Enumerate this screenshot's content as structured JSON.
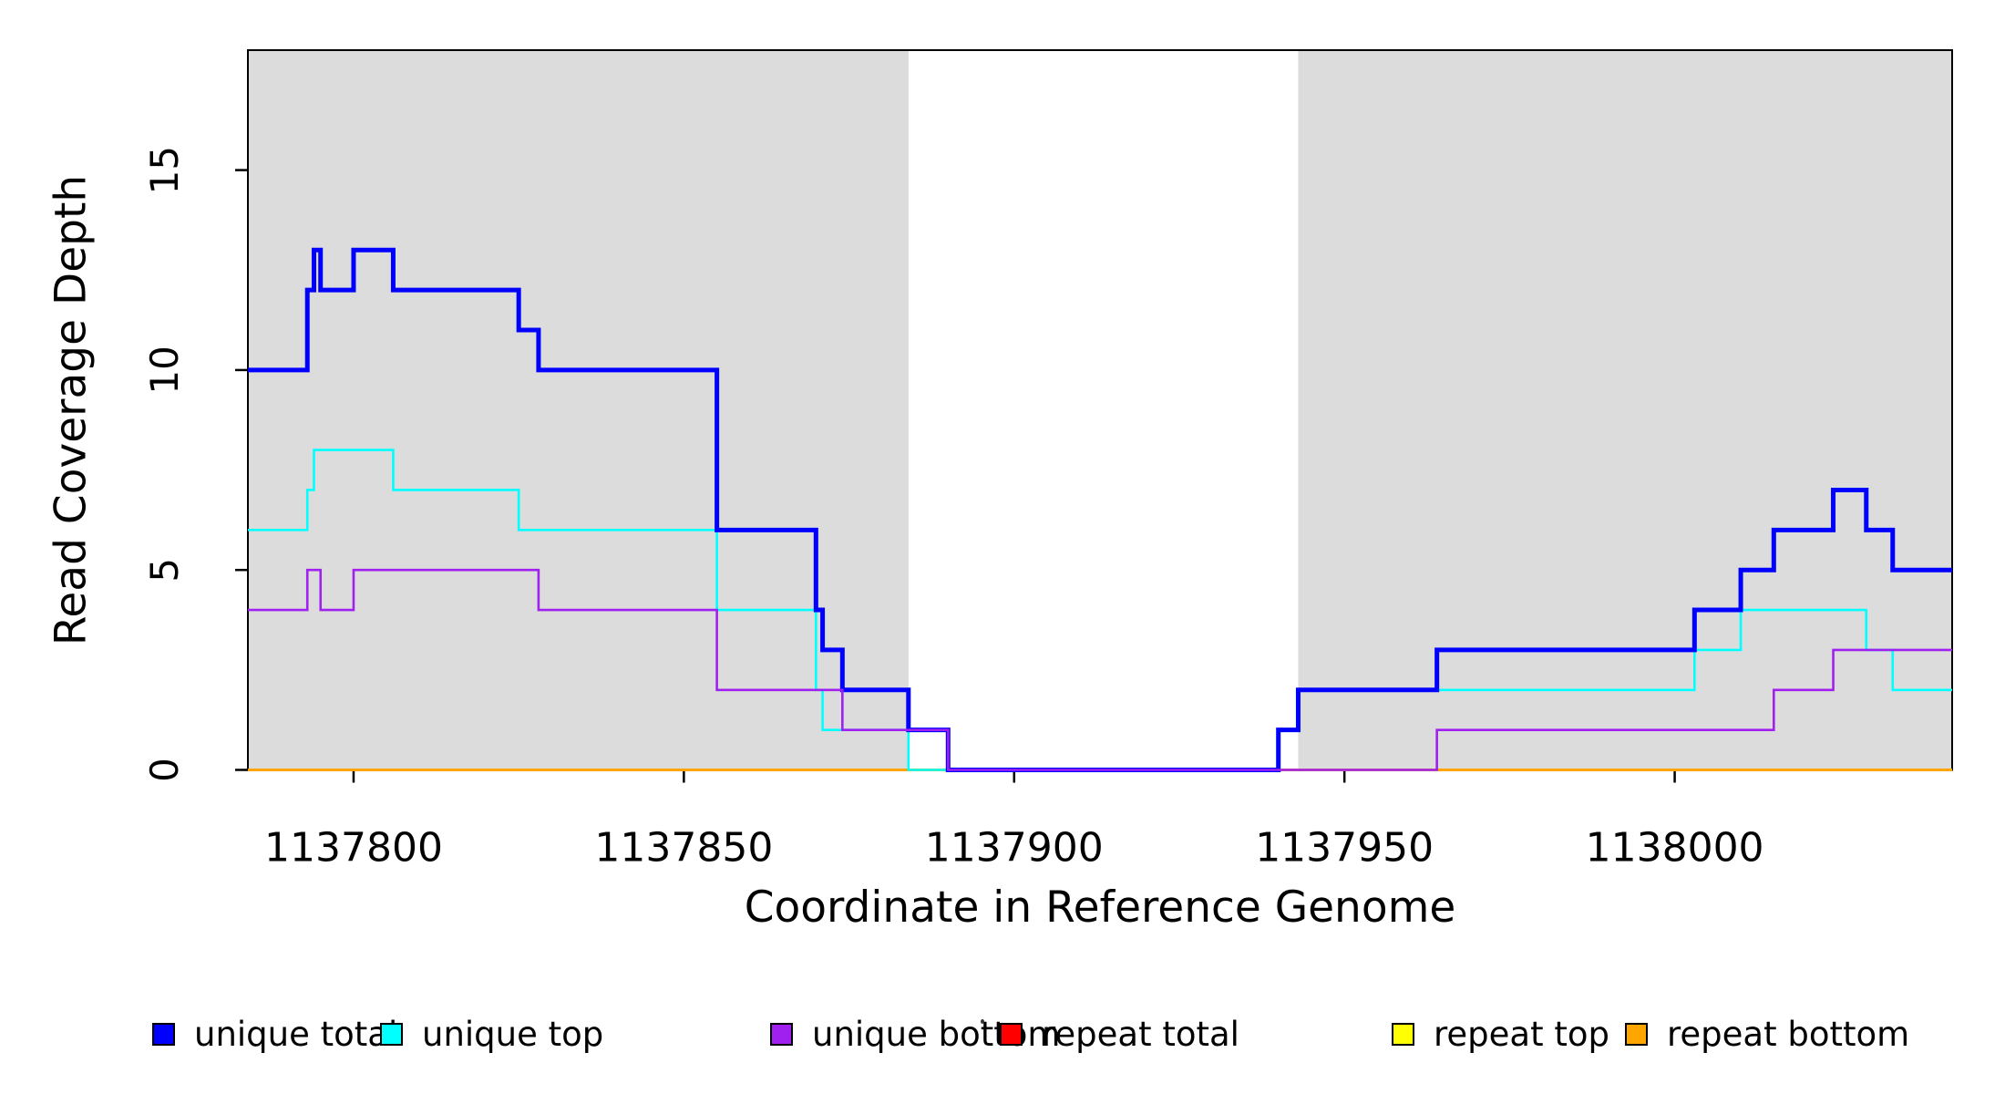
{
  "figure": {
    "x_axis_title": "Coordinate in Reference Genome",
    "y_axis_title": "Read Coverage Depth"
  },
  "chart_data": {
    "type": "line",
    "subtype": "step",
    "title": "",
    "xlabel": "Coordinate in Reference Genome",
    "ylabel": "Read Coverage Depth",
    "xlim": [
      1137784,
      1138042
    ],
    "ylim": [
      0,
      18
    ],
    "x_ticks": [
      1137800,
      1137850,
      1137900,
      1137950,
      1138000
    ],
    "y_ticks": [
      0,
      5,
      10,
      15
    ],
    "grid": false,
    "legend_position": "bottom",
    "background_shading": {
      "color": "#DCDCDC",
      "regions": [
        {
          "x_start": 1137784,
          "x_end": 1137884
        },
        {
          "x_start": 1137943,
          "x_end": 1138042
        }
      ]
    },
    "series": [
      {
        "name": "unique total",
        "color": "#0000FF",
        "line_width": 5,
        "draw_order": 5,
        "steps": [
          [
            1137784,
            10
          ],
          [
            1137793,
            12
          ],
          [
            1137794,
            13
          ],
          [
            1137795,
            12
          ],
          [
            1137800,
            13
          ],
          [
            1137806,
            12
          ],
          [
            1137825,
            11
          ],
          [
            1137828,
            10
          ],
          [
            1137855,
            6
          ],
          [
            1137870,
            4
          ],
          [
            1137871,
            3
          ],
          [
            1137874,
            2
          ],
          [
            1137884,
            1
          ],
          [
            1137890,
            0
          ],
          [
            1137940,
            1
          ],
          [
            1137943,
            2
          ],
          [
            1137964,
            3
          ],
          [
            1138003,
            4
          ],
          [
            1138010,
            5
          ],
          [
            1138015,
            6
          ],
          [
            1138024,
            7
          ],
          [
            1138029,
            6
          ],
          [
            1138033,
            5
          ]
        ]
      },
      {
        "name": "unique top",
        "color": "#00FFFF",
        "line_width": 2.6,
        "draw_order": 4,
        "steps": [
          [
            1137784,
            6
          ],
          [
            1137793,
            7
          ],
          [
            1137794,
            8
          ],
          [
            1137806,
            7
          ],
          [
            1137825,
            6
          ],
          [
            1137855,
            4
          ],
          [
            1137870,
            2
          ],
          [
            1137871,
            1
          ],
          [
            1137884,
            0
          ],
          [
            1137940,
            1
          ],
          [
            1137943,
            2
          ],
          [
            1138003,
            3
          ],
          [
            1138010,
            4
          ],
          [
            1138029,
            3
          ],
          [
            1138033,
            2
          ]
        ]
      },
      {
        "name": "unique bottom",
        "color": "#A020F0",
        "line_width": 2.6,
        "draw_order": 6,
        "steps": [
          [
            1137784,
            4
          ],
          [
            1137793,
            5
          ],
          [
            1137795,
            4
          ],
          [
            1137800,
            5
          ],
          [
            1137828,
            4
          ],
          [
            1137855,
            2
          ],
          [
            1137874,
            1
          ],
          [
            1137890,
            0
          ],
          [
            1137964,
            1
          ],
          [
            1138015,
            2
          ],
          [
            1138024,
            3
          ]
        ]
      },
      {
        "name": "repeat total",
        "color": "#FF0000",
        "line_width": 2.6,
        "draw_order": 1,
        "steps": [
          [
            1137784,
            0
          ]
        ]
      },
      {
        "name": "repeat top",
        "color": "#FFFF00",
        "line_width": 2.6,
        "draw_order": 2,
        "steps": [
          [
            1137784,
            0
          ]
        ]
      },
      {
        "name": "repeat bottom",
        "color": "#FFA500",
        "line_width": 3,
        "draw_order": 3,
        "steps": [
          [
            1137784,
            0
          ]
        ]
      }
    ],
    "legend": {
      "items": [
        {
          "label": "unique total",
          "color": "#0000FF"
        },
        {
          "label": "unique top",
          "color": "#00FFFF"
        },
        {
          "label": "unique bottom",
          "color": "#A020F0"
        },
        {
          "label": "repeat total",
          "color": "#FF0000"
        },
        {
          "label": "repeat top",
          "color": "#FFFF00"
        },
        {
          "label": "repeat bottom",
          "color": "#FFA500"
        }
      ]
    }
  }
}
